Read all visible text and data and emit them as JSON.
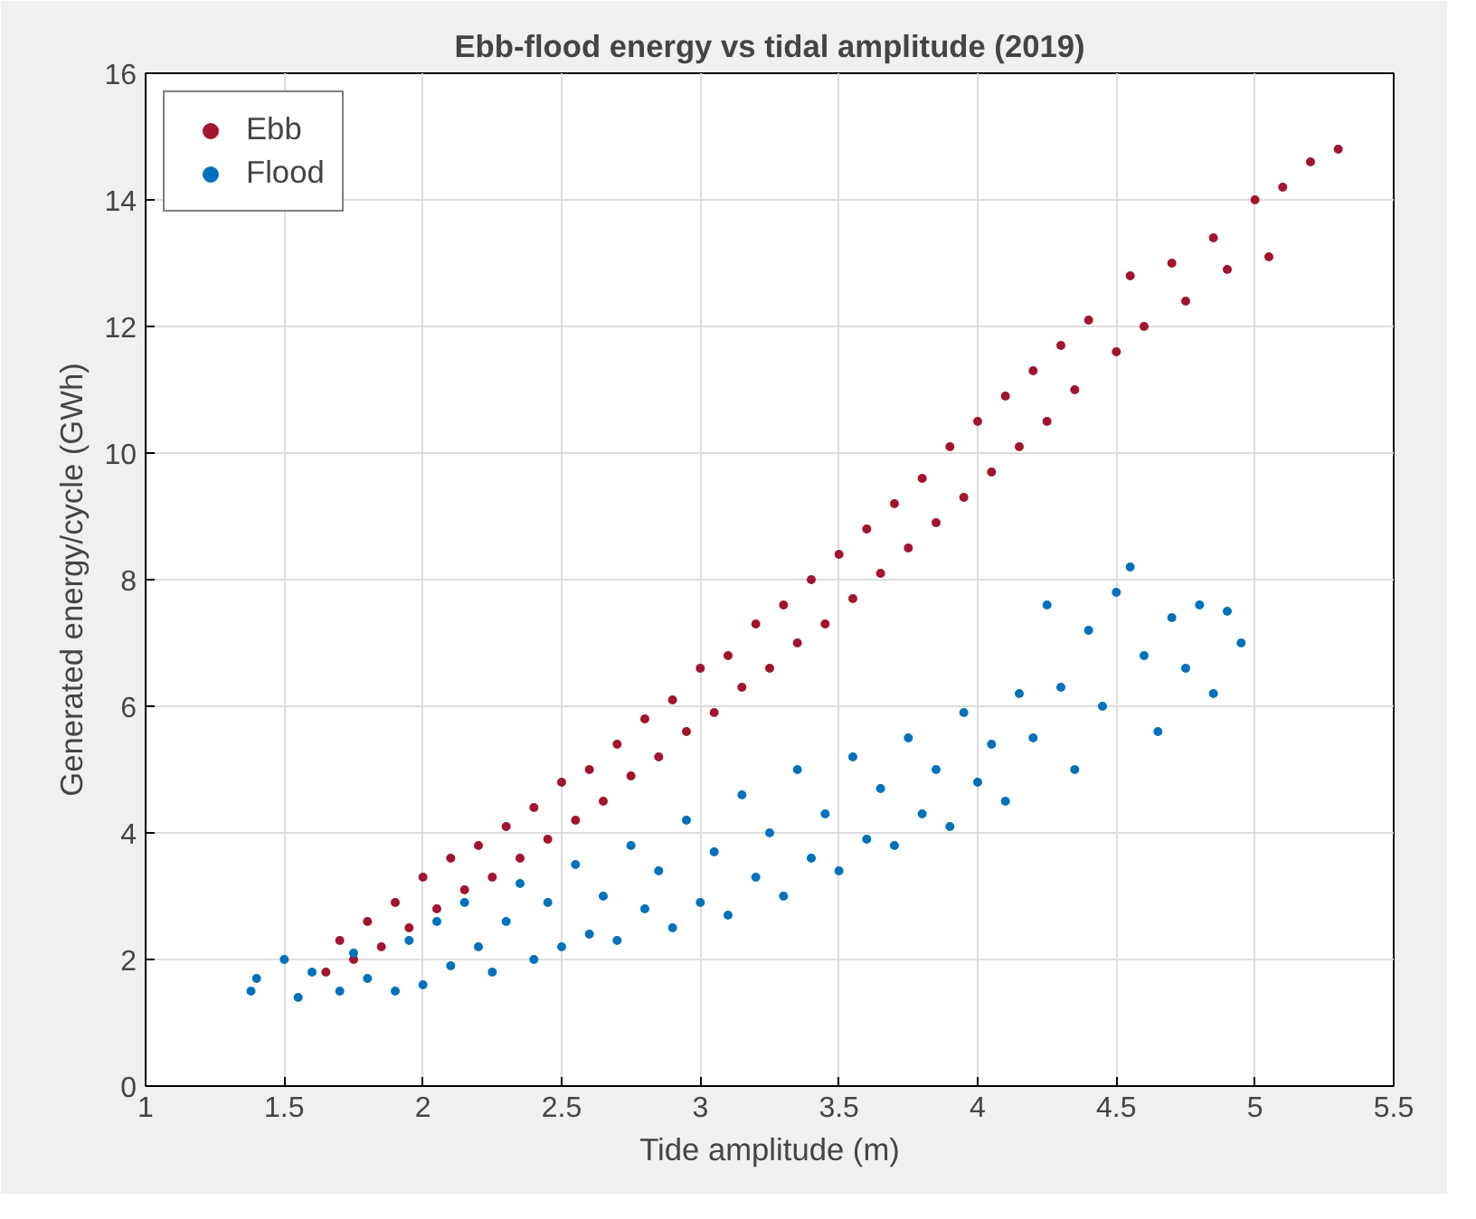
{
  "chart_data": {
    "type": "scatter",
    "title": "Ebb-flood energy vs tidal amplitude (2019)",
    "xlabel": "Tide amplitude (m)",
    "ylabel": "Generated energy/cycle (GWh)",
    "xlim": [
      1,
      5.5
    ],
    "xticks": [
      1,
      1.5,
      2,
      2.5,
      3,
      3.5,
      4,
      4.5,
      5,
      5.5
    ],
    "ylim": [
      0,
      16
    ],
    "yticks": [
      0,
      2,
      4,
      6,
      8,
      10,
      12,
      14,
      16
    ],
    "grid": true,
    "legend": "top left",
    "marker": "circle",
    "series": [
      {
        "name": "Ebb",
        "color": "#a2142f",
        "x": [
          1.65,
          1.7,
          1.75,
          1.8,
          1.85,
          1.9,
          1.95,
          2.0,
          2.05,
          2.1,
          2.15,
          2.2,
          2.25,
          2.3,
          2.35,
          2.4,
          2.45,
          2.5,
          2.55,
          2.6,
          2.65,
          2.7,
          2.75,
          2.8,
          2.85,
          2.9,
          2.95,
          3.0,
          3.05,
          3.1,
          3.15,
          3.2,
          3.25,
          3.3,
          3.35,
          3.4,
          3.45,
          3.5,
          3.55,
          3.6,
          3.65,
          3.7,
          3.75,
          3.8,
          3.85,
          3.9,
          3.95,
          4.0,
          4.05,
          4.1,
          4.15,
          4.2,
          4.25,
          4.3,
          4.35,
          4.4,
          4.5,
          4.55,
          4.6,
          4.7,
          4.75,
          4.85,
          4.9,
          5.0,
          5.05,
          5.1,
          5.2,
          5.3
        ],
        "values": [
          1.8,
          2.3,
          2.0,
          2.6,
          2.2,
          2.9,
          2.5,
          3.3,
          2.8,
          3.6,
          3.1,
          3.8,
          3.3,
          4.1,
          3.6,
          4.4,
          3.9,
          4.8,
          4.2,
          5.0,
          4.5,
          5.4,
          4.9,
          5.8,
          5.2,
          6.1,
          5.6,
          6.6,
          5.9,
          6.8,
          6.3,
          7.3,
          6.6,
          7.6,
          7.0,
          8.0,
          7.3,
          8.4,
          7.7,
          8.8,
          8.1,
          9.2,
          8.5,
          9.6,
          8.9,
          10.1,
          9.3,
          10.5,
          9.7,
          10.9,
          10.1,
          11.3,
          10.5,
          11.7,
          11.0,
          12.1,
          11.6,
          12.8,
          12.0,
          13.0,
          12.4,
          13.4,
          12.9,
          14.0,
          13.1,
          14.2,
          14.6,
          14.8
        ]
      },
      {
        "name": "Flood",
        "color": "#0072bd",
        "x": [
          1.38,
          1.4,
          1.5,
          1.55,
          1.6,
          1.7,
          1.75,
          1.8,
          1.9,
          1.95,
          2.0,
          2.05,
          2.1,
          2.15,
          2.2,
          2.25,
          2.3,
          2.35,
          2.4,
          2.45,
          2.5,
          2.55,
          2.6,
          2.65,
          2.7,
          2.75,
          2.8,
          2.85,
          2.9,
          2.95,
          3.0,
          3.05,
          3.1,
          3.15,
          3.2,
          3.25,
          3.3,
          3.35,
          3.4,
          3.45,
          3.5,
          3.55,
          3.6,
          3.65,
          3.7,
          3.75,
          3.8,
          3.85,
          3.9,
          3.95,
          4.0,
          4.05,
          4.1,
          4.15,
          4.2,
          4.25,
          4.3,
          4.35,
          4.4,
          4.45,
          4.5,
          4.55,
          4.6,
          4.65,
          4.7,
          4.75,
          4.8,
          4.85,
          4.9,
          4.95
        ],
        "values": [
          1.5,
          1.7,
          2.0,
          1.4,
          1.8,
          1.5,
          2.1,
          1.7,
          1.5,
          2.3,
          1.6,
          2.6,
          1.9,
          2.9,
          2.2,
          1.8,
          2.6,
          3.2,
          2.0,
          2.9,
          2.2,
          3.5,
          2.4,
          3.0,
          2.3,
          3.8,
          2.8,
          3.4,
          2.5,
          4.2,
          2.9,
          3.7,
          2.7,
          4.6,
          3.3,
          4.0,
          3.0,
          5.0,
          3.6,
          4.3,
          3.4,
          5.2,
          3.9,
          4.7,
          3.8,
          5.5,
          4.3,
          5.0,
          4.1,
          5.9,
          4.8,
          5.4,
          4.5,
          6.2,
          5.5,
          7.6,
          6.3,
          5.0,
          7.2,
          6.0,
          7.8,
          8.2,
          6.8,
          5.6,
          7.4,
          6.6,
          7.6,
          6.2,
          7.5,
          7.0
        ]
      }
    ]
  }
}
